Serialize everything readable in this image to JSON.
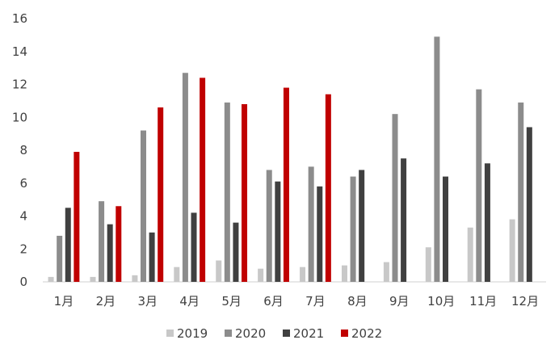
{
  "chart_data": {
    "type": "bar",
    "categories": [
      "1月",
      "2月",
      "3月",
      "4月",
      "5月",
      "6月",
      "7月",
      "8月",
      "9月",
      "10月",
      "11月",
      "12月"
    ],
    "series": [
      {
        "name": "2019",
        "color": "#c8c8c8",
        "values": [
          0.3,
          0.3,
          0.4,
          0.9,
          1.3,
          0.8,
          0.9,
          1.0,
          1.2,
          2.1,
          3.3,
          3.8
        ]
      },
      {
        "name": "2020",
        "color": "#8c8c8c",
        "values": [
          2.8,
          4.9,
          9.2,
          12.7,
          10.9,
          6.8,
          7.0,
          6.4,
          10.2,
          14.9,
          11.7,
          10.9
        ]
      },
      {
        "name": "2021",
        "color": "#404040",
        "values": [
          4.5,
          3.5,
          3.0,
          4.2,
          3.6,
          6.1,
          5.8,
          6.8,
          7.5,
          6.4,
          7.2,
          9.4
        ]
      },
      {
        "name": "2022",
        "color": "#c00000",
        "values": [
          7.9,
          4.6,
          10.6,
          12.4,
          10.8,
          11.8,
          11.4,
          null,
          null,
          null,
          null,
          null
        ]
      }
    ],
    "yticks": [
      "0",
      "2",
      "4",
      "6",
      "8",
      "10",
      "12",
      "14",
      "16"
    ],
    "ylim": [
      0,
      16
    ],
    "grid": false,
    "legend": "bottom"
  }
}
